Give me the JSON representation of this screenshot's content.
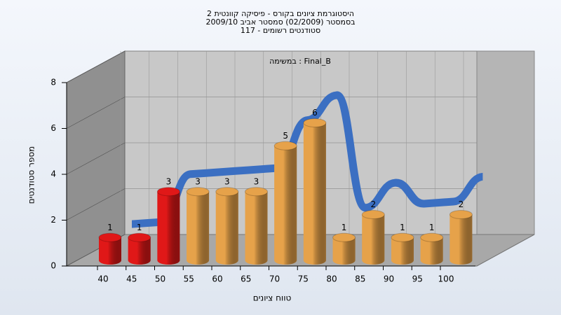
{
  "chart_data": {
    "type": "bar3d",
    "title_lines": [
      "היסטוגרמת ציונים בקורס - פיסיקה קוונטית 2",
      "בסמסטר  (02/2009)  סמסטר אביב 2009/10",
      "סטודנטים רשומים - 117"
    ],
    "subtitle": "במשימה : Final_B",
    "x_label": "טווח ציונים",
    "y_label": "מספר סטודנטים",
    "categories": [
      "40",
      "45",
      "50",
      "55",
      "60",
      "65",
      "70",
      "75",
      "80",
      "85",
      "90",
      "95",
      "100"
    ],
    "values": [
      1,
      1,
      3,
      3,
      3,
      3,
      5,
      6,
      1,
      2,
      1,
      1,
      2
    ],
    "colors": [
      "#e01818",
      "#e01818",
      "#e01818",
      "#e6a24a",
      "#e6a24a",
      "#e6a24a",
      "#e6a24a",
      "#e6a24a",
      "#e6a24a",
      "#e6a24a",
      "#e6a24a",
      "#e6a24a",
      "#e6a24a"
    ],
    "trend_color": "#3b6fc2",
    "ylim": [
      0,
      8
    ],
    "yticks": [
      0,
      2,
      4,
      6,
      8
    ],
    "grid": true
  }
}
